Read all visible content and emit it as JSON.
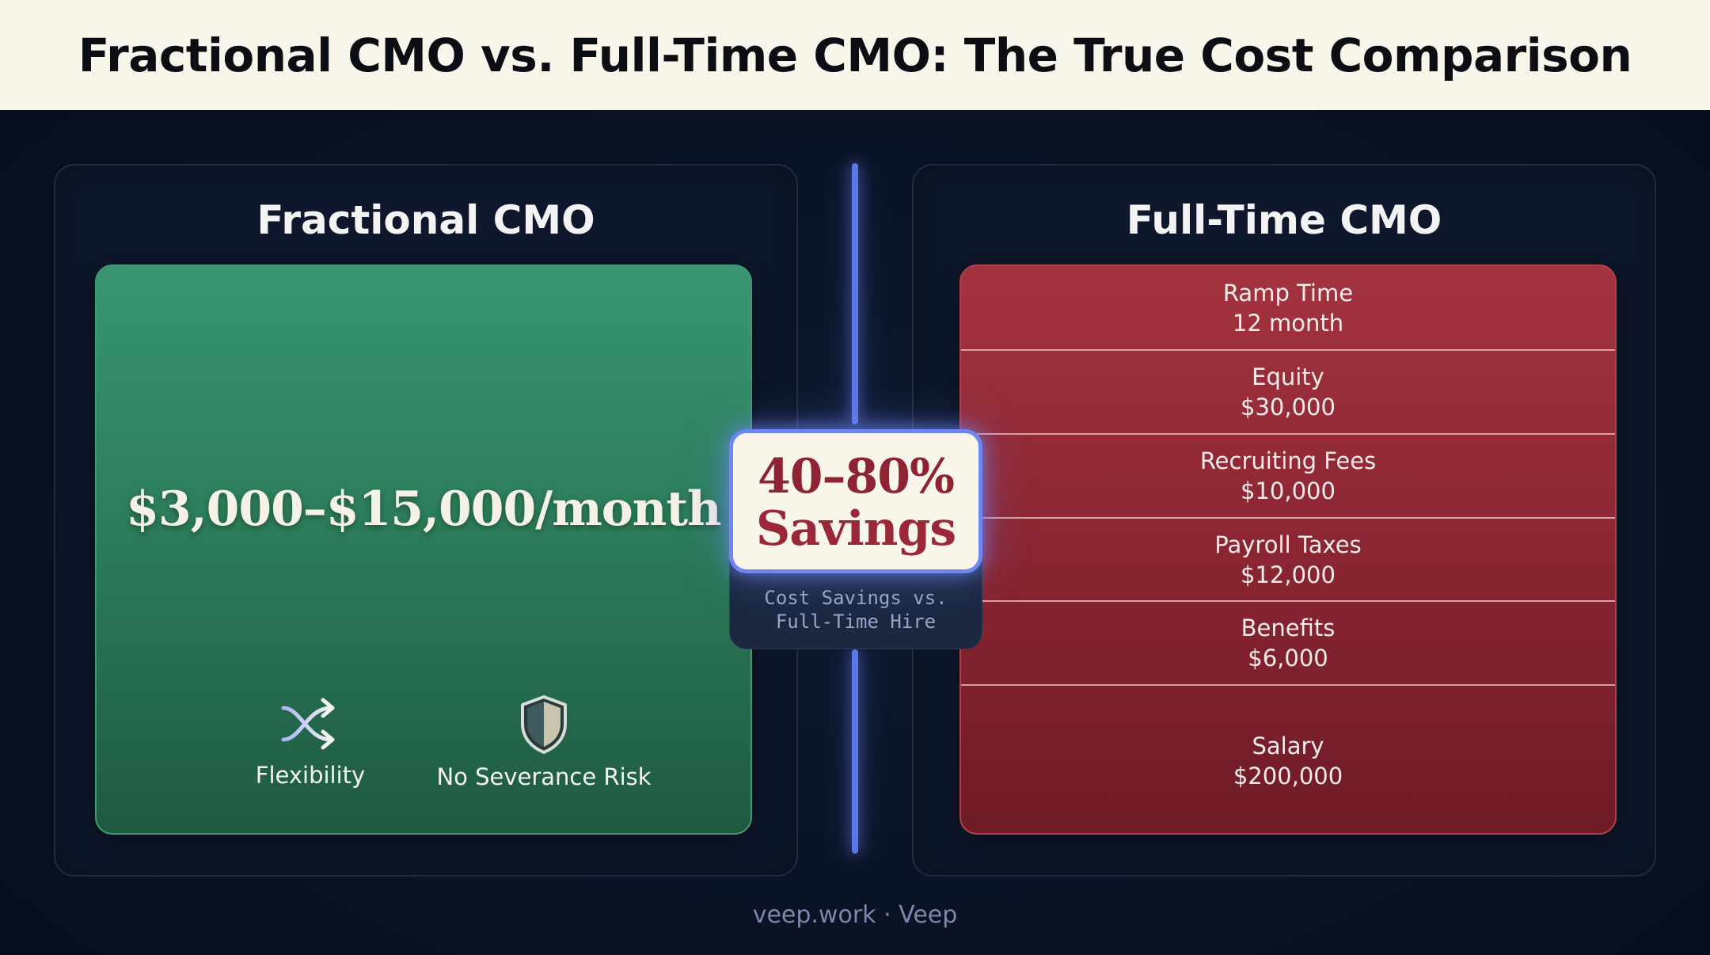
{
  "header": {
    "title": "Fractional CMO vs. Full-Time CMO: The True Cost Comparison"
  },
  "colors": {
    "header_bg": "#f8f5ea",
    "page_bg": "#0a1224",
    "fractional_green": "#2f8562",
    "fulltime_red": "#8a2632",
    "divider_blue": "#5e77e6",
    "savings_text": "#8e2431"
  },
  "fractional": {
    "title": "Fractional CMO",
    "price": "$3,000–$15,000/month",
    "features": [
      {
        "icon": "shuffle-icon",
        "label": "Flexibility"
      },
      {
        "icon": "shield-icon",
        "label": "No Severance Risk"
      }
    ]
  },
  "fulltime": {
    "title": "Full-Time CMO",
    "costs": [
      {
        "label": "Ramp Time",
        "value": "12 month"
      },
      {
        "label": "Equity",
        "value": "$30,000"
      },
      {
        "label": "Recruiting Fees",
        "value": "$10,000"
      },
      {
        "label": "Payroll Taxes",
        "value": "$12,000"
      },
      {
        "label": "Benefits",
        "value": "$6,000"
      },
      {
        "label": "Salary",
        "value": "$200,000"
      }
    ]
  },
  "savings": {
    "percent": "40–80%",
    "word": "Savings",
    "subtitle_line1": "Cost Savings vs.",
    "subtitle_line2": "Full-Time Hire"
  },
  "footer": {
    "text": "veep.work · Veep"
  }
}
